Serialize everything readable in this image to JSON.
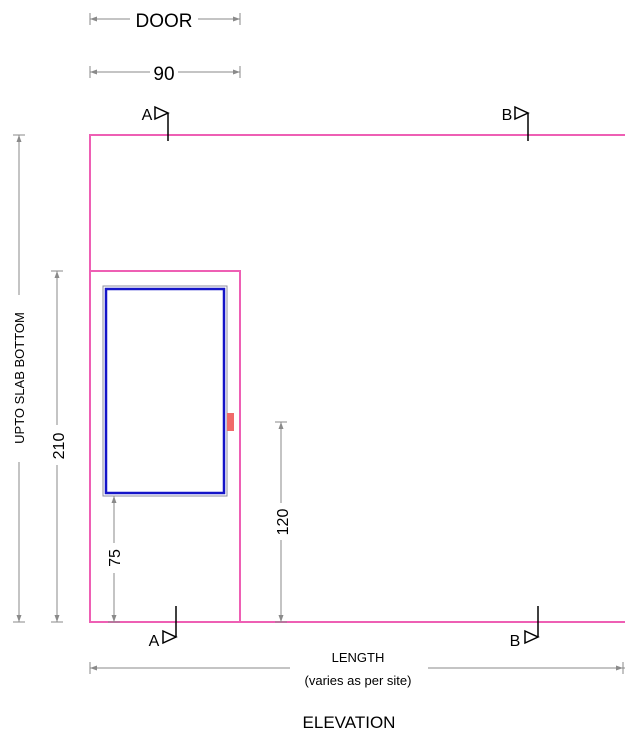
{
  "drawing": {
    "title": "ELEVATION",
    "colors": {
      "wall_outline": "#ee5fb4",
      "window_frame": "#1515c8",
      "window_outer": "#8c8ca0",
      "door_handle": "#f06a6a",
      "dimension_line": "#8a8a8a",
      "section_mark": "#000000"
    },
    "dimensions": {
      "door_label": "DOOR",
      "door_width": "90",
      "wall_height": "UPTO SLAB BOTTOM",
      "door_height": "210",
      "window_sill": "75",
      "handle_height": "120",
      "length_label": "LENGTH",
      "length_note": "(varies as per site)"
    },
    "section_marks": [
      {
        "label": "A",
        "position": "top"
      },
      {
        "label": "B",
        "position": "top"
      },
      {
        "label": "A",
        "position": "bottom"
      },
      {
        "label": "B",
        "position": "bottom"
      }
    ]
  }
}
